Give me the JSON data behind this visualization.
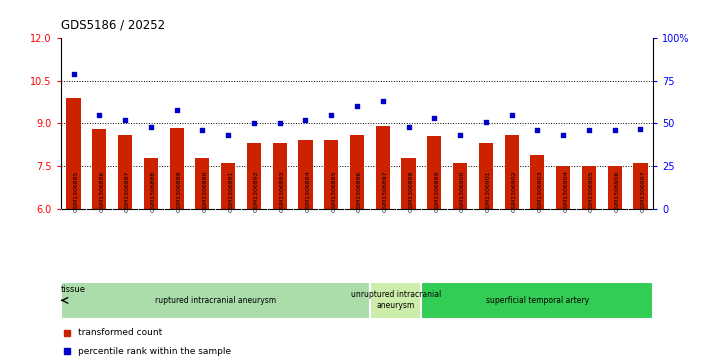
{
  "title": "GDS5186 / 20252",
  "samples": [
    "GSM1306885",
    "GSM1306886",
    "GSM1306887",
    "GSM1306888",
    "GSM1306889",
    "GSM1306890",
    "GSM1306891",
    "GSM1306892",
    "GSM1306893",
    "GSM1306894",
    "GSM1306895",
    "GSM1306896",
    "GSM1306897",
    "GSM1306898",
    "GSM1306899",
    "GSM1306900",
    "GSM1306901",
    "GSM1306902",
    "GSM1306903",
    "GSM1306904",
    "GSM1306905",
    "GSM1306906",
    "GSM1306907"
  ],
  "bar_values": [
    9.9,
    8.8,
    8.6,
    7.8,
    8.85,
    7.8,
    7.6,
    8.3,
    8.3,
    8.4,
    8.4,
    8.6,
    8.9,
    7.8,
    8.55,
    7.6,
    8.3,
    8.6,
    7.9,
    7.5,
    7.5,
    7.5,
    7.6
  ],
  "dot_values": [
    79,
    55,
    52,
    48,
    58,
    46,
    43,
    50,
    50,
    52,
    55,
    60,
    63,
    48,
    53,
    43,
    51,
    55,
    46,
    43,
    46,
    46,
    47
  ],
  "ylim_left": [
    6,
    12
  ],
  "ylim_right": [
    0,
    100
  ],
  "yticks_left": [
    6,
    7.5,
    9.0,
    10.5,
    12
  ],
  "yticks_right": [
    0,
    25,
    50,
    75,
    100
  ],
  "hlines": [
    7.5,
    9.0,
    10.5
  ],
  "bar_color": "#cc2200",
  "dot_color": "#0000cc",
  "bar_width": 0.55,
  "group_ruptured": {
    "label": "ruptured intracranial aneurysm",
    "start": 0,
    "end": 11,
    "color": "#aaddaa"
  },
  "group_unruptured": {
    "label": "unruptured intracranial\naneurysm",
    "start": 12,
    "end": 13,
    "color": "#bbeeaa"
  },
  "group_superficial": {
    "label": "superficial temporal artery",
    "start": 14,
    "end": 22,
    "color": "#33cc55"
  },
  "tissue_label": "tissue",
  "legend_bar_label": "transformed count",
  "legend_dot_label": "percentile rank within the sample"
}
